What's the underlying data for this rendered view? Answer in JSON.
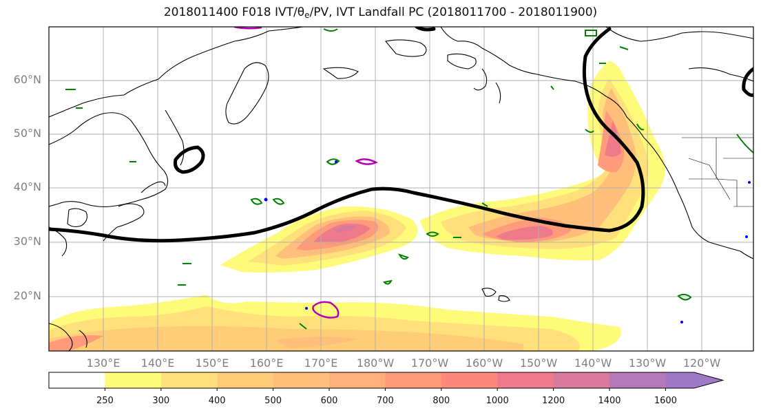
{
  "title_parts": {
    "pre": "2018011400 F018 IVT/",
    "theta": "θ",
    "sub": "e",
    "post": "/PV, IVT Landfall PC (2018011700 - 2018011900)"
  },
  "lat_labels": [
    "60°N",
    "50°N",
    "40°N",
    "30°N",
    "20°N"
  ],
  "lon_labels": [
    "130°E",
    "140°E",
    "150°E",
    "160°E",
    "170°E",
    "180°W",
    "170°W",
    "160°W",
    "150°W",
    "140°W",
    "130°W",
    "120°W"
  ],
  "colorbar": {
    "ticks": [
      "250",
      "300",
      "400",
      "500",
      "600",
      "700",
      "800",
      "1000",
      "1200",
      "1400",
      "1600"
    ],
    "colors": [
      "#ffffff",
      "#fffb7a",
      "#ffe07a",
      "#ffcc78",
      "#ffbf7a",
      "#ffb07a",
      "#ff9a7a",
      "#ff887e",
      "#ee7a8c",
      "#d97a9c",
      "#b47ab8",
      "#a07ac6"
    ]
  },
  "colors": {
    "landfall_contour": "#000000",
    "pv_contour": "#008000",
    "theta_contour": "#b400b4",
    "blue_contour": "#0000ff"
  }
}
